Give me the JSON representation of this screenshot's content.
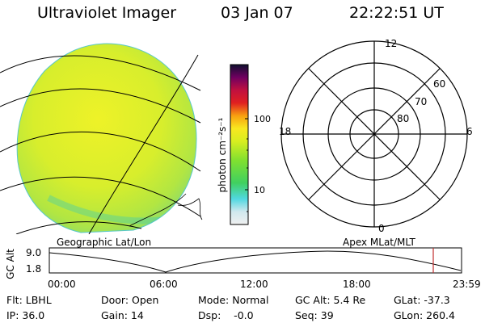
{
  "header": {
    "instrument": "Ultraviolet Imager",
    "date": "03 Jan 07",
    "time": "22:22:51 UT"
  },
  "colorbar": {
    "unit_label": "photon cm⁻²s⁻¹",
    "ticks": [
      "100",
      "10"
    ]
  },
  "polar_plot": {
    "mlt_labels": {
      "top": "12",
      "left": "18",
      "right": "6",
      "bottom": "0"
    },
    "lat_labels": [
      "60",
      "70",
      "80"
    ]
  },
  "labels": {
    "geo": "Geographic Lat/Lon",
    "apex": "Apex MLat/MLT"
  },
  "altitude_strip": {
    "axis_label": "GC Alt",
    "ymax": "9.0",
    "ymin": "1.8",
    "time_ticks": [
      "00:00",
      "06:00",
      "12:00",
      "18:00",
      "23:59"
    ]
  },
  "status": {
    "flt": "Flt: LBHL",
    "ip": "IP: 36.0",
    "door": "Door: Open",
    "gain": "Gain: 14",
    "mode": "Mode: Normal",
    "dsp": "Dsp:    -0.0",
    "gcalt": "GC Alt: 5.4 Re",
    "seq": "Seq: 39",
    "glat": "GLat: -37.3",
    "glon": "GLon: 260.4"
  },
  "colors": {
    "disk_main": "#d6ef2a",
    "disk_edge": "#9be05a",
    "marker": "#c03030"
  }
}
